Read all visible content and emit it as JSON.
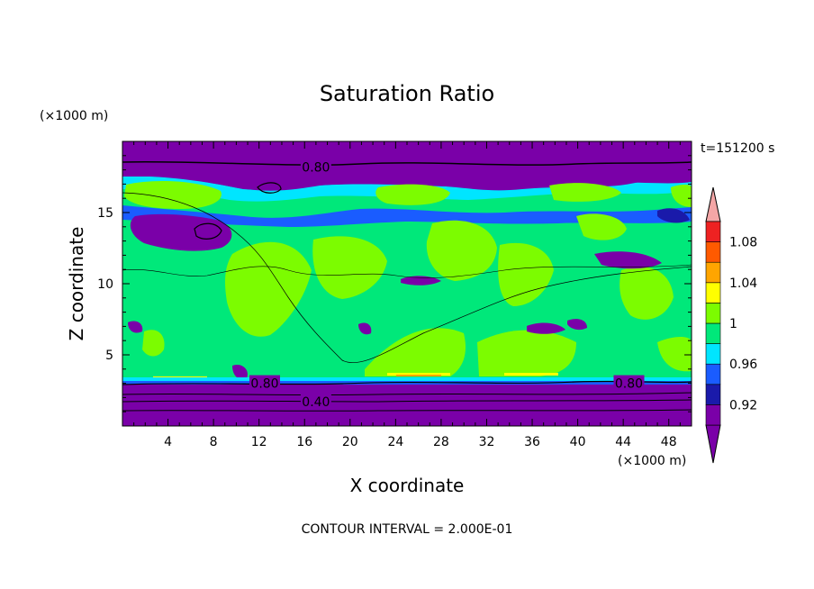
{
  "chart_data": {
    "type": "contour",
    "title": "Saturation Ratio",
    "xlabel": "X coordinate",
    "ylabel": "Z coordinate",
    "x_unit": "(×1000 m)",
    "y_unit": "(×1000 m)",
    "time_label": "t=151200 s",
    "footer": "CONTOUR INTERVAL = 2.000E-01",
    "xlim": [
      0,
      50
    ],
    "ylim": [
      0,
      20
    ],
    "x_ticks": [
      4,
      8,
      12,
      16,
      20,
      24,
      28,
      32,
      36,
      40,
      44,
      48
    ],
    "y_ticks": [
      5,
      10,
      15
    ],
    "contour_labels": [
      {
        "text": "0.80",
        "x": 17,
        "z": 18.2
      },
      {
        "text": "0.80",
        "x": 12.5,
        "z": 3.0
      },
      {
        "text": "0.80",
        "x": 44.5,
        "z": 3.0
      },
      {
        "text": "0.40",
        "x": 17,
        "z": 1.7
      }
    ],
    "colorbar": {
      "labels": [
        "1.08",
        "1.04",
        "1",
        "0.96",
        "0.92"
      ],
      "levels": [
        0.9,
        0.92,
        0.94,
        0.96,
        0.98,
        1.0,
        1.02,
        1.04,
        1.06,
        1.08,
        1.1
      ],
      "colors": [
        "#7a00a8",
        "#1a1aaa",
        "#1a5cff",
        "#00e5ff",
        "#00e87a",
        "#7cfc00",
        "#ffff00",
        "#ffa500",
        "#ff5a00",
        "#ee2222"
      ],
      "under_color": "#7a00a8",
      "over_color": "#f4a6a6"
    },
    "field_colors": {
      "deep": "#7a00a8",
      "blue_dark": "#1a1aaa",
      "blue": "#1a5cff",
      "cyan": "#00e5ff",
      "green": "#00e87a",
      "lime": "#7cfc00",
      "yellow": "#ffff00",
      "orange": "#ffa500"
    }
  }
}
